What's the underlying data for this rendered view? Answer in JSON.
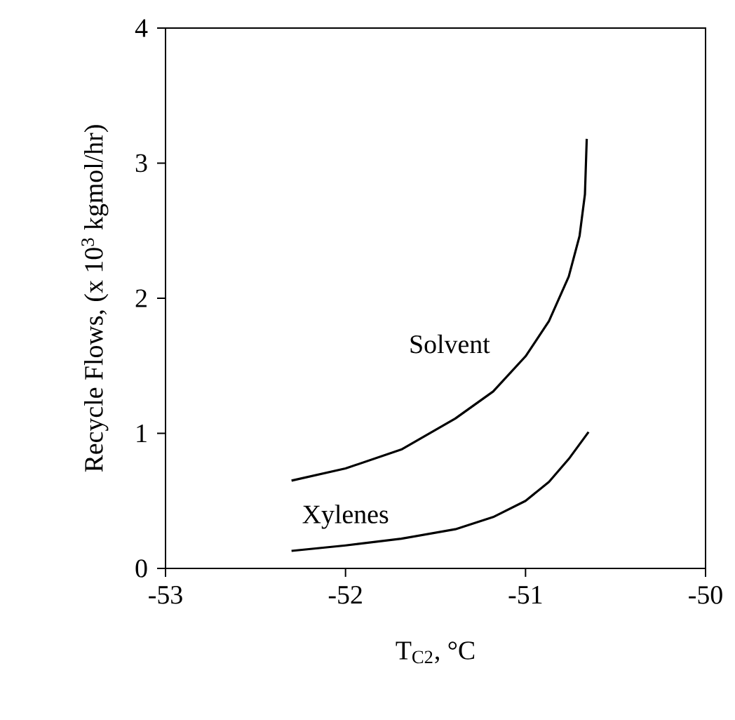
{
  "chart_data": {
    "type": "line",
    "xlabel": "T$_{C2}$, °C",
    "ylabel": "Recycle Flows, (x 10$^{3}$ kgmol/hr)",
    "xlim": [
      -53,
      -50
    ],
    "ylim": [
      0,
      4
    ],
    "xticks": [
      -53,
      -52,
      -51,
      -50
    ],
    "yticks": [
      0,
      1,
      2,
      3,
      4
    ],
    "series": [
      {
        "name": "Solvent",
        "color": "#000000",
        "x": [
          -52.3,
          -52.0,
          -51.69,
          -51.39,
          -51.18,
          -51.0,
          -50.87,
          -50.76,
          -50.7,
          -50.67,
          -50.66
        ],
        "values": [
          0.65,
          0.74,
          0.88,
          1.11,
          1.31,
          1.57,
          1.83,
          2.16,
          2.46,
          2.77,
          3.18
        ]
      },
      {
        "name": "Xylenes",
        "color": "#000000",
        "x": [
          -52.3,
          -52.0,
          -51.69,
          -51.39,
          -51.18,
          -51.0,
          -50.87,
          -50.76,
          -50.65
        ],
        "values": [
          0.13,
          0.17,
          0.22,
          0.29,
          0.38,
          0.5,
          0.64,
          0.81,
          1.01
        ]
      }
    ]
  }
}
